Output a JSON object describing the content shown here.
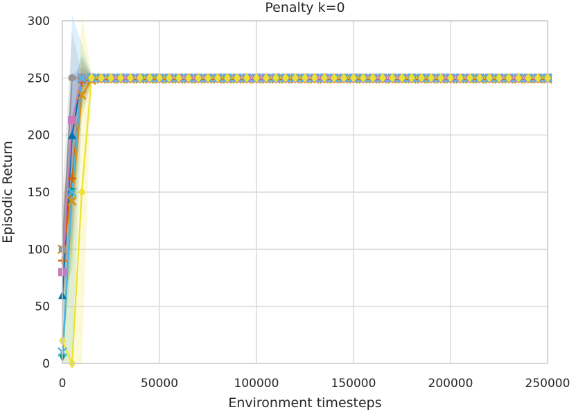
{
  "chart_data": {
    "type": "line",
    "title": "Penalty k=0",
    "xlabel": "Environment timesteps",
    "ylabel": "Episodic Return",
    "xlim": [
      0,
      250000
    ],
    "ylim": [
      0,
      300
    ],
    "xticks": [
      0,
      50000,
      100000,
      150000,
      200000,
      250000
    ],
    "xtick_labels": [
      "0",
      "50000",
      "100000",
      "150000",
      "200000",
      "250000"
    ],
    "yticks": [
      0,
      50,
      100,
      150,
      200,
      250,
      300
    ],
    "ytick_labels": [
      "0",
      "50",
      "100",
      "150",
      "200",
      "250",
      "300"
    ],
    "grid": true,
    "legend": "none",
    "series": [
      {
        "color": "#0173b2",
        "marker": "triangle",
        "x": [
          0,
          5000,
          10000,
          15000
        ],
        "y": [
          60,
          200,
          250,
          250
        ],
        "band": [
          30,
          40,
          20,
          3
        ],
        "plateau": 250
      },
      {
        "color": "#de8f05",
        "marker": "x",
        "x": [
          0,
          5000,
          10000,
          15000
        ],
        "y": [
          100,
          142,
          235,
          248
        ],
        "band": [
          40,
          60,
          20,
          3
        ],
        "plateau": 249
      },
      {
        "color": "#029e73",
        "marker": "triangle-down",
        "x": [
          0,
          5000,
          10000,
          15000
        ],
        "y": [
          5,
          150,
          250,
          250
        ],
        "band": [
          10,
          50,
          10,
          3
        ],
        "plateau": 250
      },
      {
        "color": "#d55e00",
        "marker": "plus",
        "x": [
          0,
          5000,
          10000,
          15000
        ],
        "y": [
          90,
          162,
          246,
          249
        ],
        "band": [
          40,
          50,
          20,
          3
        ],
        "plateau": 249
      },
      {
        "color": "#cc78bc",
        "marker": "square",
        "x": [
          0,
          5000,
          10000,
          15000
        ],
        "y": [
          80,
          213,
          250,
          250
        ],
        "band": [
          30,
          40,
          10,
          3
        ],
        "plateau": 250
      },
      {
        "color": "#949494",
        "marker": "hexagon",
        "x": [
          0,
          5000,
          10000,
          15000
        ],
        "y": [
          100,
          250,
          250,
          250
        ],
        "band": [
          50,
          40,
          5,
          3
        ],
        "plateau": 250
      },
      {
        "color": "#56b4e9",
        "marker": "x",
        "x": [
          0,
          5000,
          10000,
          15000
        ],
        "y": [
          10,
          150,
          250,
          250
        ],
        "band": [
          40,
          160,
          30,
          3
        ],
        "plateau": 250
      },
      {
        "color": "#ece133",
        "marker": "diamond",
        "x": [
          0,
          5000,
          10000,
          15000
        ],
        "y": [
          20,
          0,
          150,
          250
        ],
        "band": [
          30,
          120,
          160,
          5
        ],
        "plateau": 250
      }
    ]
  }
}
